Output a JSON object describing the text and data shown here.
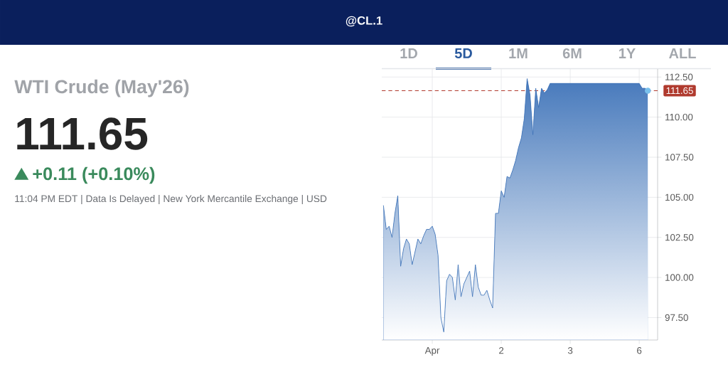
{
  "chart_data": {
    "type": "area",
    "title": "WTI Crude (May'26)",
    "annotations": [
      "@CL.1",
      "111.65",
      "+0.11 (+0.10%)",
      "11:04 PM EDT | Data Is Delayed | New York Mercantile Exchange | USD",
      "1D",
      "5D",
      "1M",
      "6M",
      "1Y",
      "ALL"
    ],
    "categories": [
      null,
      null,
      null,
      null,
      null,
      null,
      null,
      null,
      null,
      null,
      null,
      null,
      null,
      null,
      null,
      null,
      null,
      "Apr",
      null,
      null,
      null,
      null,
      null,
      null,
      null,
      null,
      null,
      null,
      null,
      null,
      null,
      null,
      null,
      null,
      null,
      null,
      null,
      null,
      null,
      null,
      null,
      "2",
      null,
      null,
      null,
      null,
      null,
      null,
      null,
      null,
      null,
      null,
      null,
      null,
      null,
      null,
      null,
      null,
      null,
      null,
      null,
      null,
      null,
      null,
      null,
      "3",
      null,
      null,
      null,
      null,
      null,
      null,
      null,
      null,
      null,
      null,
      null,
      null,
      null,
      null,
      null,
      null,
      null,
      null,
      null,
      null,
      null,
      null,
      null,
      "6",
      null,
      null,
      null
    ],
    "ylim": [
      96.1,
      113.0
    ],
    "yticks": [
      {
        "value": 97.5,
        "label": "97.50"
      },
      {
        "value": 100,
        "label": "100.00"
      },
      {
        "value": 102.5,
        "label": "102.50"
      },
      {
        "value": 105,
        "label": "105.00"
      },
      {
        "value": 107.5,
        "label": "107.50"
      },
      {
        "value": 110,
        "label": "110.00"
      },
      {
        "value": 112.5,
        "label": "112.50"
      }
    ],
    "grid": true,
    "ref_lines": [
      {
        "axis": "y",
        "value": 111.65,
        "label": "111.65",
        "color": "#b03a2e",
        "line_style": "dashed"
      }
    ],
    "series": [
      {
        "color": "#3d72b8",
        "values": [
          104.5,
          103.0,
          103.2,
          102.5,
          104.0,
          105.1,
          100.7,
          101.8,
          102.4,
          102.1,
          100.8,
          101.6,
          102.4,
          102.1,
          102.6,
          103.0,
          103.0,
          103.2,
          102.7,
          101.4,
          97.5,
          96.6,
          99.8,
          100.2,
          100.0,
          98.6,
          100.8,
          98.8,
          99.6,
          100.0,
          100.4,
          98.8,
          100.8,
          99.4,
          98.9,
          98.9,
          99.2,
          98.6,
          98.1,
          104.0,
          104.0,
          105.4,
          105.0,
          106.3,
          106.2,
          106.7,
          107.3,
          108.1,
          108.7,
          109.9,
          112.4,
          111.4,
          108.9,
          111.8,
          110.6,
          111.8,
          111.5,
          111.7,
          112.1,
          112.1,
          112.1,
          112.1,
          112.1,
          112.1,
          112.1,
          112.1,
          112.1,
          112.1,
          112.1,
          112.1,
          112.1,
          112.1,
          112.1,
          112.1,
          112.1,
          112.1,
          112.1,
          112.1,
          112.1,
          112.1,
          112.1,
          112.1,
          112.1,
          112.1,
          112.1,
          112.1,
          112.1,
          112.1,
          112.1,
          112.1,
          111.8,
          111.8,
          111.65
        ]
      }
    ]
  }
}
